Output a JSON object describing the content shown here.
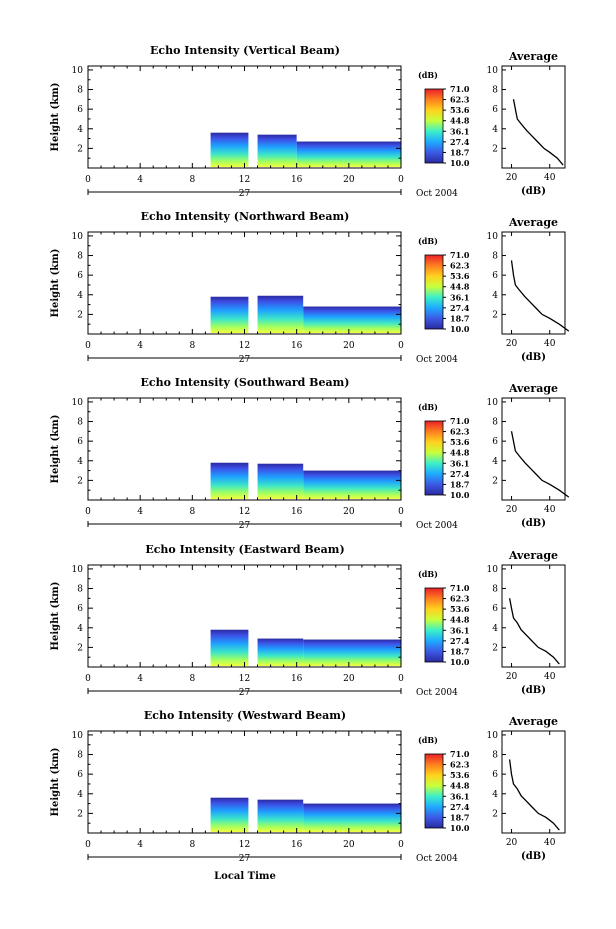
{
  "common": {
    "x_ticks": [
      "0",
      "4",
      "8",
      "12",
      "16",
      "20",
      "0"
    ],
    "y_ticks": [
      "2",
      "4",
      "6",
      "8",
      "10"
    ],
    "ylabel": "Height (km)",
    "date_day": "27",
    "date_label": "Oct 2004",
    "xlabel_bottom": "Local Time",
    "colorbar_unit": "(dB)",
    "colorbar_levels": [
      "71.0",
      "62.3",
      "53.6",
      "44.8",
      "36.1",
      "27.4",
      "18.7",
      "10.0"
    ],
    "colorbar_colors": [
      "#e8202a",
      "#ff7f1e",
      "#ffd21e",
      "#c8ff3c",
      "#3cf0c8",
      "#1eaaff",
      "#3c5ae6",
      "#2a2aa0"
    ],
    "avg_title": "Average",
    "avg_unit": "(dB)",
    "avg_x_ticks": [
      "20",
      "40"
    ],
    "avg_y_ticks": [
      "2",
      "4",
      "6",
      "8",
      "10"
    ]
  },
  "chart_data": [
    {
      "type": "heatmap",
      "title": "Echo Intensity (Vertical Beam)",
      "xlabel": "",
      "ylabel": "Height (km)",
      "x_range_hours": [
        0,
        24
      ],
      "ylim": [
        0,
        10.4
      ],
      "colorbar_range_db": [
        10.0,
        71.0
      ],
      "echo_regions": [
        {
          "t_start": 9.4,
          "t_end": 12.3,
          "h_top": 3.6
        },
        {
          "t_start": 13.0,
          "t_end": 16.0,
          "h_top": 3.4
        },
        {
          "t_start": 16.0,
          "t_end": 24.0,
          "h_top": 2.7
        }
      ],
      "average_profile": {
        "x_db": [
          47,
          44,
          40,
          37,
          34,
          31,
          28,
          25,
          23,
          22,
          21
        ],
        "height_km": [
          0.3,
          1.0,
          1.6,
          2.0,
          2.6,
          3.2,
          3.8,
          4.5,
          5.0,
          6.0,
          7.0
        ]
      }
    },
    {
      "type": "heatmap",
      "title": "Echo Intensity (Northward Beam)",
      "xlabel": "",
      "ylabel": "Height (km)",
      "x_range_hours": [
        0,
        24
      ],
      "ylim": [
        0,
        10.4
      ],
      "colorbar_range_db": [
        10.0,
        71.0
      ],
      "echo_regions": [
        {
          "t_start": 9.4,
          "t_end": 12.3,
          "h_top": 3.8
        },
        {
          "t_start": 13.0,
          "t_end": 16.5,
          "h_top": 3.9
        },
        {
          "t_start": 16.5,
          "t_end": 24.0,
          "h_top": 2.8
        }
      ],
      "average_profile": {
        "x_db": [
          50,
          45,
          40,
          36,
          33,
          30,
          27,
          24,
          22,
          21,
          20
        ],
        "height_km": [
          0.3,
          1.0,
          1.6,
          2.0,
          2.6,
          3.2,
          3.8,
          4.5,
          5.0,
          6.0,
          7.5
        ]
      }
    },
    {
      "type": "heatmap",
      "title": "Echo Intensity (Southward Beam)",
      "xlabel": "",
      "ylabel": "Height (km)",
      "x_range_hours": [
        0,
        24
      ],
      "ylim": [
        0,
        10.4
      ],
      "colorbar_range_db": [
        10.0,
        71.0
      ],
      "echo_regions": [
        {
          "t_start": 9.4,
          "t_end": 12.3,
          "h_top": 3.8
        },
        {
          "t_start": 13.0,
          "t_end": 16.5,
          "h_top": 3.7
        },
        {
          "t_start": 16.5,
          "t_end": 24.0,
          "h_top": 3.0
        }
      ],
      "average_profile": {
        "x_db": [
          50,
          45,
          40,
          36,
          33,
          30,
          27,
          24,
          22,
          21,
          20
        ],
        "height_km": [
          0.3,
          1.0,
          1.6,
          2.0,
          2.6,
          3.2,
          3.8,
          4.5,
          5.0,
          6.0,
          7.0
        ]
      }
    },
    {
      "type": "heatmap",
      "title": "Echo Intensity (Eastward Beam)",
      "xlabel": "",
      "ylabel": "Height (km)",
      "x_range_hours": [
        0,
        24
      ],
      "ylim": [
        0,
        10.4
      ],
      "colorbar_range_db": [
        10.0,
        71.0
      ],
      "echo_regions": [
        {
          "t_start": 9.4,
          "t_end": 12.3,
          "h_top": 3.8
        },
        {
          "t_start": 13.0,
          "t_end": 16.5,
          "h_top": 2.9
        },
        {
          "t_start": 16.5,
          "t_end": 24.0,
          "h_top": 2.8
        }
      ],
      "average_profile": {
        "x_db": [
          45,
          42,
          38,
          34,
          31,
          28,
          25,
          23,
          21,
          20,
          19
        ],
        "height_km": [
          0.3,
          1.0,
          1.6,
          2.0,
          2.6,
          3.2,
          3.8,
          4.5,
          5.0,
          6.0,
          7.0
        ]
      }
    },
    {
      "type": "heatmap",
      "title": "Echo Intensity (Westward Beam)",
      "xlabel": "Local Time",
      "ylabel": "Height (km)",
      "x_range_hours": [
        0,
        24
      ],
      "ylim": [
        0,
        10.4
      ],
      "colorbar_range_db": [
        10.0,
        71.0
      ],
      "echo_regions": [
        {
          "t_start": 9.4,
          "t_end": 12.3,
          "h_top": 3.6
        },
        {
          "t_start": 13.0,
          "t_end": 16.5,
          "h_top": 3.4
        },
        {
          "t_start": 16.5,
          "t_end": 24.0,
          "h_top": 3.0
        }
      ],
      "average_profile": {
        "x_db": [
          45,
          42,
          38,
          34,
          31,
          28,
          25,
          23,
          21,
          20,
          19
        ],
        "height_km": [
          0.3,
          1.0,
          1.6,
          2.0,
          2.6,
          3.2,
          3.8,
          4.5,
          5.0,
          6.0,
          7.5
        ]
      }
    }
  ]
}
